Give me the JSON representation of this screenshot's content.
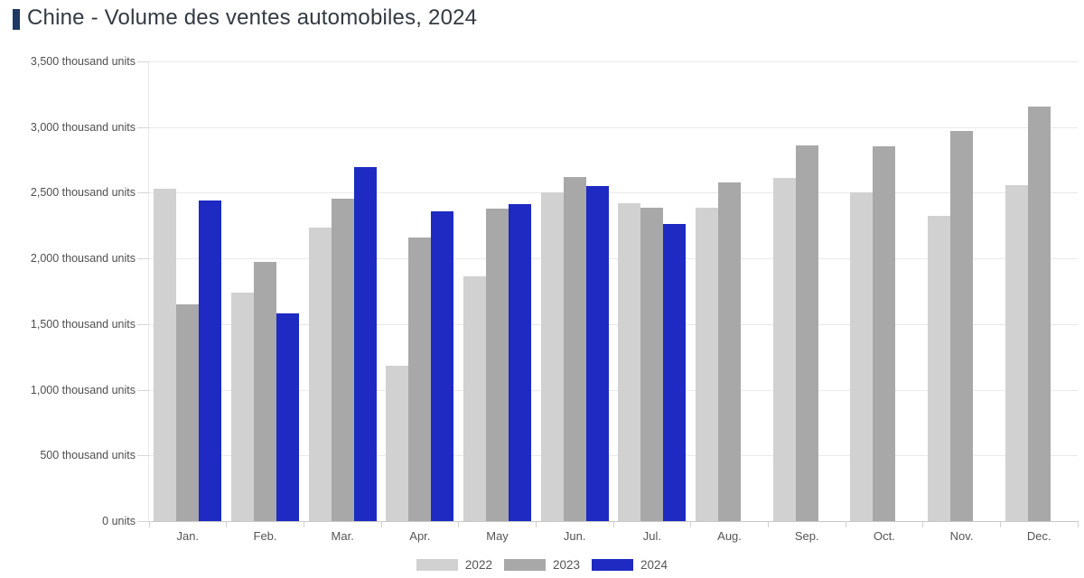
{
  "title": {
    "text": "Chine - Volume des ventes automobiles, 2024",
    "marker_color": "#1f3864"
  },
  "chart_data": {
    "type": "bar",
    "title": "Chine - Volume des ventes automobiles, 2024",
    "unit": "thousand units",
    "categories": [
      "Jan.",
      "Feb.",
      "Mar.",
      "Apr.",
      "May",
      "Jun.",
      "Jul.",
      "Aug.",
      "Sep.",
      "Oct.",
      "Nov.",
      "Dec."
    ],
    "series": [
      {
        "name": "2022",
        "color": "#d1d1d1",
        "values": [
          2530,
          1737,
          2234,
          1181,
          1862,
          2502,
          2420,
          2383,
          2610,
          2505,
          2326,
          2559
        ]
      },
      {
        "name": "2023",
        "color": "#a8a8a8",
        "values": [
          1649,
          1976,
          2452,
          2159,
          2382,
          2622,
          2383,
          2579,
          2859,
          2853,
          2970,
          3156
        ]
      },
      {
        "name": "2024",
        "color": "#1e2ac1",
        "values": [
          2439,
          1585,
          2694,
          2360,
          2417,
          2552,
          2262,
          null,
          null,
          null,
          null,
          null
        ]
      }
    ],
    "y_axis": {
      "min": 0,
      "max": 3500,
      "tick_step": 500,
      "ticks": [
        {
          "value": 3500,
          "label": "3,500 thousand units"
        },
        {
          "value": 3000,
          "label": "3,000 thousand units"
        },
        {
          "value": 2500,
          "label": "2,500 thousand units"
        },
        {
          "value": 2000,
          "label": "2,000 thousand units"
        },
        {
          "value": 1500,
          "label": "1,500 thousand units"
        },
        {
          "value": 1000,
          "label": "1,000 thousand units"
        },
        {
          "value": 500,
          "label": "500 thousand units"
        },
        {
          "value": 0,
          "label": "0 units"
        }
      ]
    },
    "grid": true,
    "legend": {
      "position": "bottom",
      "entries": [
        {
          "label": "2022",
          "color": "#d1d1d1"
        },
        {
          "label": "2023",
          "color": "#a8a8a8"
        },
        {
          "label": "2024",
          "color": "#1e2ac1"
        }
      ]
    }
  }
}
